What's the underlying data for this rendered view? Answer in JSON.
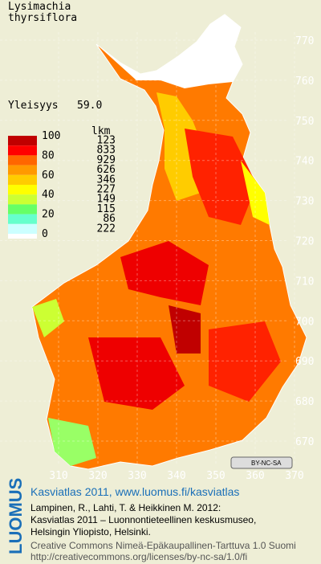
{
  "title": [
    "Lysimachia",
    "thyrsiflora"
  ],
  "frequency": {
    "label": "Yleisyys",
    "value": "59.0"
  },
  "legend": {
    "scale_labels": [
      100,
      80,
      60,
      40,
      20,
      0
    ],
    "count_header": "lkm",
    "counts": [
      123,
      833,
      929,
      626,
      346,
      227,
      149,
      115,
      86,
      222
    ],
    "colors": [
      "#c00000",
      "#ff0000",
      "#ff6600",
      "#ff9900",
      "#ffcc00",
      "#ffff00",
      "#ccff33",
      "#66ff66",
      "#66ffcc",
      "#ccffff",
      "#ffffff"
    ]
  },
  "grid": {
    "y_labels": [
      "770",
      "760",
      "750",
      "740",
      "730",
      "720",
      "710",
      "700",
      "690",
      "680",
      "670"
    ],
    "x_labels": [
      "310",
      "320",
      "330",
      "340",
      "350",
      "360",
      "370"
    ]
  },
  "license_badge": "BY-NC-SA",
  "footer": {
    "side_logo": "LUOMUS",
    "heading": "Kasviatlas 2011, www.luomus.fi/kasviatlas",
    "citation": [
      "Lampinen, R., Lahti, T. & Heikkinen M. 2012:",
      "Kasviatlas 2011 – Luonnontieteellinen keskusmuseo,",
      "Helsingin Yliopisto, Helsinki."
    ],
    "license": [
      "Creative Commons Nimeä-Epäkaupallinen-Tarttuva 1.0 Suomi",
      "http://creativecommons.org/licenses/by-nc-sa/1.0/fi"
    ]
  }
}
